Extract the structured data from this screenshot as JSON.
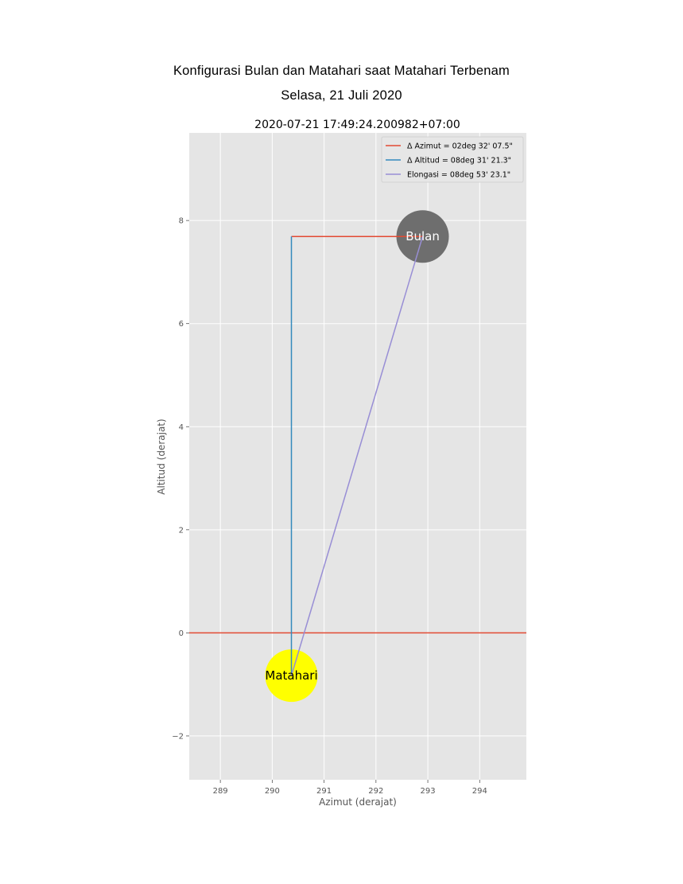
{
  "header": {
    "title_line1": "Konfigurasi Bulan dan Matahari saat Matahari Terbenam",
    "title_line2": "Selasa, 21 Juli 2020"
  },
  "chart_data": {
    "type": "scatter",
    "title": "2020-07-21 17:49:24.200982+07:00",
    "xlabel": "Azimut (derajat)",
    "ylabel": "Altitud (derajat)",
    "xlim": [
      288.4,
      294.9
    ],
    "ylim": [
      -2.85,
      9.7
    ],
    "xticks": [
      289,
      290,
      291,
      292,
      293,
      294
    ],
    "yticks": [
      -2,
      0,
      2,
      4,
      6,
      8
    ],
    "ytick_labels": [
      "−2",
      "0",
      "2",
      "4",
      "6",
      "8"
    ],
    "grid": true,
    "background": "#e5e5e5",
    "horizon_altitude": 0,
    "bodies": [
      {
        "name": "Bulan",
        "azimuth": 292.9,
        "altitude": 7.69,
        "color": "#6e6e6e"
      },
      {
        "name": "Matahari",
        "azimuth": 290.37,
        "altitude": -0.83,
        "color": "#ffff00"
      }
    ],
    "series": [
      {
        "name": "Δ Azimut = 02deg 32' 07.5\"",
        "color": "#e24a33",
        "x": [
          290.37,
          292.9
        ],
        "y": [
          7.69,
          7.69
        ]
      },
      {
        "name": "Δ Altitud = 08deg 31' 21.3\"",
        "color": "#348abd",
        "x": [
          290.37,
          290.37
        ],
        "y": [
          -0.83,
          7.69
        ]
      },
      {
        "name": "Elongasi = 08deg 53' 23.1\"",
        "color": "#988ed5",
        "x": [
          290.37,
          292.9
        ],
        "y": [
          -0.83,
          7.69
        ]
      }
    ],
    "legend_position": "upper right"
  }
}
